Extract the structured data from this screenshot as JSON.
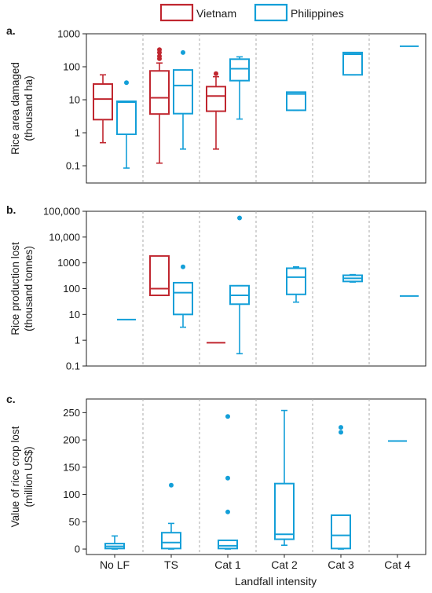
{
  "legend": [
    {
      "name": "Vietnam",
      "color": "#c0262f"
    },
    {
      "name": "Philippines",
      "color": "#139fd8"
    }
  ],
  "x_title": "Landfall intensity",
  "chart_data": [
    {
      "type": "box",
      "panel_label": "a.",
      "ylabel": [
        "Rice area damaged",
        "(thousand ha)"
      ],
      "yscale": "log",
      "ylim": [
        0.03,
        1000
      ],
      "yticks": [
        0.1,
        1,
        10,
        100,
        1000
      ],
      "ytick_labels": [
        "0.1",
        "1",
        "10",
        "100",
        "1000"
      ],
      "categories": [
        "No LF",
        "TS",
        "Cat 1",
        "Cat 2",
        "Cat 3",
        "Cat 4"
      ],
      "series": [
        {
          "name": "Vietnam",
          "color": "#c0262f",
          "boxes": [
            {
              "cat": 0,
              "min": 0.5,
              "q1": 2.5,
              "median": 10.5,
              "q3": 30,
              "max": 57,
              "outliers": []
            },
            {
              "cat": 1,
              "min": 0.12,
              "q1": 3.7,
              "median": 11.5,
              "q3": 75,
              "max": 130,
              "outliers": [
                175,
                210,
                270,
                330
              ]
            },
            {
              "cat": 2,
              "min": 0.32,
              "q1": 4.5,
              "median": 13,
              "q3": 25,
              "max": 50,
              "outliers": [
                62
              ]
            }
          ]
        },
        {
          "name": "Philippines",
          "color": "#139fd8",
          "boxes": [
            {
              "cat": 0,
              "min": 0.085,
              "q1": 0.9,
              "median": 8.5,
              "q3": 9,
              "max": 9,
              "outliers": [
                33
              ]
            },
            {
              "cat": 1,
              "min": 0.32,
              "q1": 3.8,
              "median": 27,
              "q3": 80,
              "max": 80,
              "outliers": [
                270
              ]
            },
            {
              "cat": 2,
              "min": 2.6,
              "q1": 38,
              "median": 87,
              "q3": 170,
              "max": 200,
              "outliers": []
            },
            {
              "cat": 3,
              "min": 4.8,
              "q1": 4.8,
              "median": 15,
              "q3": 17,
              "max": 17,
              "outliers": []
            },
            {
              "cat": 4,
              "min": 57,
              "q1": 57,
              "median": 240,
              "q3": 270,
              "max": 270,
              "outliers": []
            },
            {
              "cat": 5,
              "min": 420,
              "q1": 420,
              "median": 420,
              "q3": 420,
              "max": 420,
              "outliers": []
            }
          ]
        }
      ]
    },
    {
      "type": "box",
      "panel_label": "b.",
      "ylabel": [
        "Rice production lost",
        "(thousand tonnes)"
      ],
      "yscale": "log",
      "ylim": [
        0.1,
        100000
      ],
      "yticks": [
        0.1,
        1,
        10,
        100,
        1000,
        10000,
        100000
      ],
      "ytick_labels": [
        "0.1",
        "1",
        "10",
        "100",
        "1000",
        "10,000",
        "100,000"
      ],
      "categories": [
        "No LF",
        "TS",
        "Cat 1",
        "Cat 2",
        "Cat 3",
        "Cat 4"
      ],
      "series": [
        {
          "name": "Vietnam",
          "color": "#c0262f",
          "boxes": [
            {
              "cat": 1,
              "min": 55,
              "q1": 55,
              "median": 100,
              "q3": 1850,
              "max": 1850,
              "outliers": []
            },
            {
              "cat": 2,
              "min": 0.8,
              "q1": 0.8,
              "median": 0.8,
              "q3": 0.8,
              "max": 0.8,
              "outliers": []
            }
          ]
        },
        {
          "name": "Philippines",
          "color": "#139fd8",
          "boxes": [
            {
              "cat": 0,
              "min": 6.3,
              "q1": 6.3,
              "median": 6.3,
              "q3": 6.3,
              "max": 6.3,
              "outliers": []
            },
            {
              "cat": 1,
              "min": 3.2,
              "q1": 10,
              "median": 70,
              "q3": 170,
              "max": 170,
              "outliers": [
                700
              ]
            },
            {
              "cat": 2,
              "min": 0.3,
              "q1": 25,
              "median": 55,
              "q3": 130,
              "max": 130,
              "outliers": [
                55000
              ]
            },
            {
              "cat": 3,
              "min": 30,
              "q1": 60,
              "median": 280,
              "q3": 620,
              "max": 700,
              "outliers": []
            },
            {
              "cat": 4,
              "min": 180,
              "q1": 190,
              "median": 250,
              "q3": 330,
              "max": 350,
              "outliers": []
            },
            {
              "cat": 5,
              "min": 52,
              "q1": 52,
              "median": 52,
              "q3": 52,
              "max": 52,
              "outliers": []
            }
          ]
        }
      ]
    },
    {
      "type": "box",
      "panel_label": "c.",
      "ylabel": [
        "Value of rice crop lost",
        "(million US$)"
      ],
      "yscale": "linear",
      "ylim": [
        -10,
        275
      ],
      "yticks": [
        0,
        50,
        100,
        150,
        200,
        250
      ],
      "ytick_labels": [
        "0",
        "50",
        "100",
        "150",
        "200",
        "250"
      ],
      "categories": [
        "No LF",
        "TS",
        "Cat 1",
        "Cat 2",
        "Cat 3",
        "Cat 4"
      ],
      "series": [
        {
          "name": "Philippines",
          "color": "#139fd8",
          "boxes": [
            {
              "cat": 0,
              "min": 0,
              "q1": 1,
              "median": 5,
              "q3": 10,
              "max": 24,
              "outliers": []
            },
            {
              "cat": 1,
              "min": 0,
              "q1": 1,
              "median": 12,
              "q3": 30,
              "max": 47,
              "outliers": [
                117
              ]
            },
            {
              "cat": 2,
              "min": 0,
              "q1": 1,
              "median": 6,
              "q3": 16,
              "max": 16,
              "outliers": [
                68,
                130,
                243
              ]
            },
            {
              "cat": 3,
              "min": 7,
              "q1": 18,
              "median": 27,
              "q3": 120,
              "max": 254,
              "outliers": []
            },
            {
              "cat": 4,
              "min": 0,
              "q1": 1,
              "median": 25,
              "q3": 62,
              "max": 62,
              "outliers": [
                214,
                223
              ]
            },
            {
              "cat": 5,
              "min": 198,
              "q1": 198,
              "median": 198,
              "q3": 198,
              "max": 198,
              "outliers": []
            }
          ]
        }
      ]
    }
  ]
}
